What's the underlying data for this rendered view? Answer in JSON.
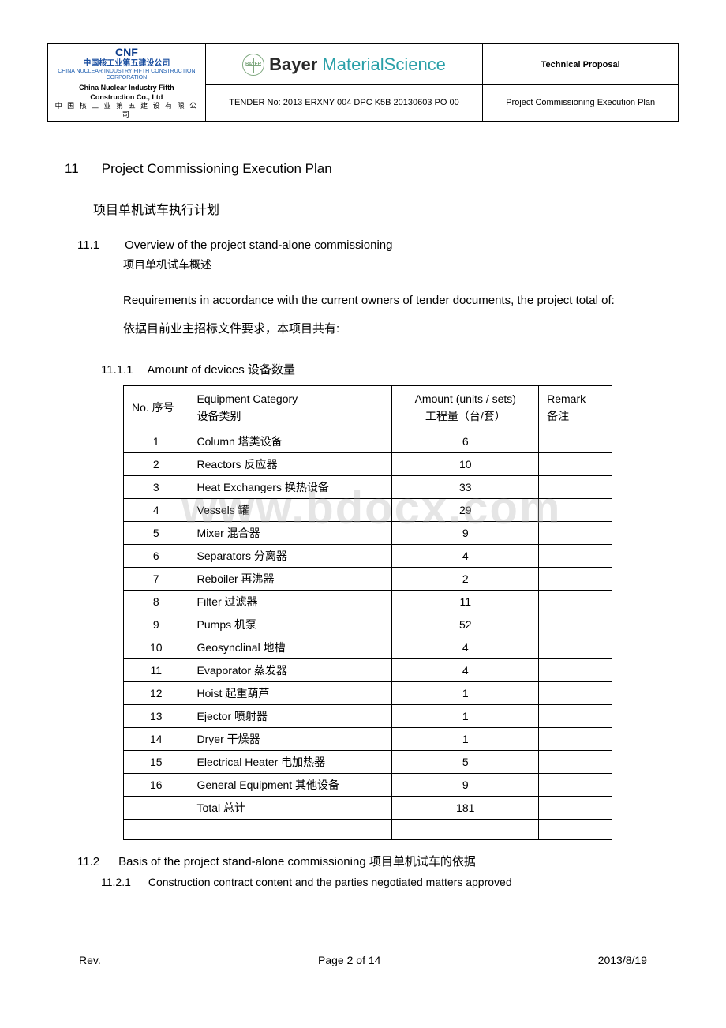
{
  "header": {
    "left": {
      "cnf": "CNF",
      "cn_name": "中国核工业第五建设公司",
      "cn_sub": "CHINA NUCLEAR INDUSTRY FIFTH CONSTRUCTION CORPORATION",
      "en_name1": "China Nuclear Industry Fifth",
      "en_name2": "Construction Co., Ltd",
      "cn_name2": "中 国 核 工 业 第 五 建 设 有 限 公 司"
    },
    "mid": {
      "brand_b": "Bayer ",
      "brand_ms": "MaterialScience",
      "tender": "TENDER No: 2013 ERXNY 004 DPC K5B 20130603 PO 00"
    },
    "right": {
      "top": "Technical Proposal",
      "bot": "Project Commissioning Execution Plan"
    }
  },
  "watermark": "www.bdocx.com",
  "section": {
    "s11_num": "11",
    "s11_title": "Project Commissioning Execution Plan",
    "s11_cn": "项目单机试车执行计划",
    "s111_num": "11.1",
    "s111_title": "Overview of the project stand-alone commissioning",
    "s111_cn": "项目单机试车概述",
    "para_en": "Requirements in accordance with the current owners of tender documents, the project total of:",
    "para_cn": "依据目前业主招标文件要求，本项目共有:",
    "s1111_num": "11.1.1",
    "s1111_title": "Amount of devices 设备数量",
    "s112_num": "11.2",
    "s112_title": "Basis of the project stand-alone commissioning 项目单机试车的依据",
    "s1121_num": "11.2.1",
    "s1121_title": "Construction contract content and the parties negotiated matters approved"
  },
  "table": {
    "headers": {
      "no_en": "No. 序号",
      "cat_en": "Equipment Category",
      "cat_cn": "设备类别",
      "amt_en": "Amount (units / sets)",
      "amt_cn": "工程量（台/套）",
      "rem_en": "Remark",
      "rem_cn": "备注"
    },
    "rows": [
      {
        "no": "1",
        "cat": "Column 塔类设备",
        "amt": "6",
        "rem": ""
      },
      {
        "no": "2",
        "cat": "Reactors 反应器",
        "amt": "10",
        "rem": ""
      },
      {
        "no": "3",
        "cat": "Heat Exchangers 换热设备",
        "amt": "33",
        "rem": ""
      },
      {
        "no": "4",
        "cat": "Vessels 罐",
        "amt": "29",
        "rem": ""
      },
      {
        "no": "5",
        "cat": "Mixer 混合器",
        "amt": "9",
        "rem": ""
      },
      {
        "no": "6",
        "cat": "Separators 分离器",
        "amt": "4",
        "rem": ""
      },
      {
        "no": "7",
        "cat": "Reboiler 再沸器",
        "amt": "2",
        "rem": ""
      },
      {
        "no": "8",
        "cat": "Filter 过滤器",
        "amt": "11",
        "rem": ""
      },
      {
        "no": "9",
        "cat": "Pumps 机泵",
        "amt": "52",
        "rem": ""
      },
      {
        "no": "10",
        "cat": "Geosynclinal 地槽",
        "amt": "4",
        "rem": ""
      },
      {
        "no": "11",
        "cat": "Evaporator 蒸发器",
        "amt": "4",
        "rem": ""
      },
      {
        "no": "12",
        "cat": "Hoist 起重葫芦",
        "amt": "1",
        "rem": ""
      },
      {
        "no": "13",
        "cat": "Ejector 喷射器",
        "amt": "1",
        "rem": ""
      },
      {
        "no": "14",
        "cat": "Dryer 干燥器",
        "amt": "1",
        "rem": ""
      },
      {
        "no": "15",
        "cat": "Electrical Heater 电加热器",
        "amt": "5",
        "rem": ""
      },
      {
        "no": "16",
        "cat": "General Equipment 其他设备",
        "amt": "9",
        "rem": ""
      }
    ],
    "total_label": "Total  总计",
    "total_value": "181"
  },
  "footer": {
    "rev": "Rev.",
    "page": "Page 2 of 14",
    "date": "2013/8/19"
  },
  "colors": {
    "text": "#000000",
    "border": "#000000",
    "logo_blue": "#0a3a8a",
    "bayer_green": "#7fa87f",
    "bayer_teal": "#2aa0a8",
    "watermark": "rgba(180,180,180,0.35)"
  }
}
